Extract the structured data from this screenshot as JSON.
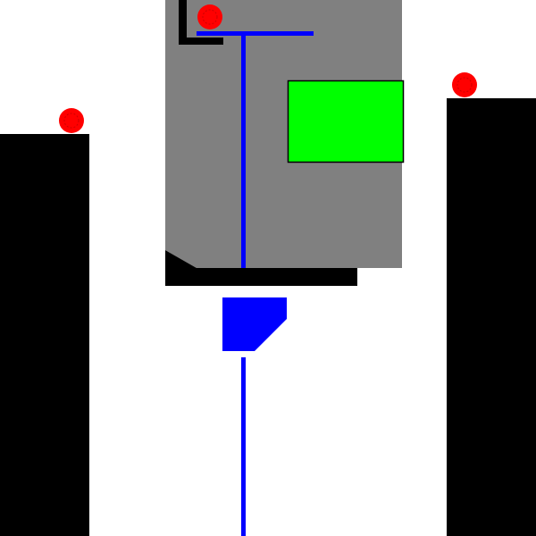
{
  "scene": {
    "background_color": "#ffffff",
    "wall_color": "#000000",
    "zone_color": "#808080",
    "target_color": "#00ff00",
    "rod_color": "#0000ff",
    "coin_color": "#ff0000",
    "coin_count": 3
  }
}
